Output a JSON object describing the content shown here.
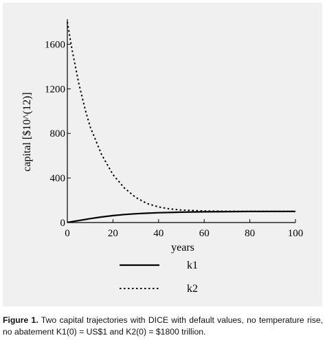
{
  "chart_data": {
    "type": "line",
    "title": "",
    "xlabel": "years",
    "ylabel": "capital [$10^(12)]",
    "xlim": [
      0,
      100
    ],
    "ylim": [
      0,
      1800
    ],
    "xticks": [
      0,
      20,
      40,
      60,
      80,
      100
    ],
    "yticks": [
      0,
      400,
      800,
      1200,
      1600
    ],
    "grid": false,
    "legend_placement": "bottom-center",
    "series": [
      {
        "name": "k1",
        "style": "solid",
        "color": "#000000",
        "x": [
          0,
          5,
          10,
          15,
          20,
          25,
          30,
          35,
          40,
          50,
          60,
          70,
          80,
          90,
          100
        ],
        "y": [
          1,
          18,
          35,
          50,
          62,
          72,
          79,
          84,
          88,
          93,
          96,
          98,
          99,
          100,
          100
        ]
      },
      {
        "name": "k2",
        "style": "dotted",
        "color": "#000000",
        "x": [
          0,
          2,
          5,
          8,
          10,
          15,
          20,
          25,
          30,
          35,
          40,
          45,
          50,
          60,
          70,
          80,
          90,
          100
        ],
        "y": [
          1800,
          1560,
          1250,
          1000,
          860,
          610,
          430,
          310,
          225,
          170,
          140,
          122,
          112,
          104,
          101,
          100,
          100,
          100
        ]
      }
    ]
  },
  "caption": {
    "label": "Figure 1.",
    "text": " Two capital trajectories with DICE with default values, no temperature rise, no abatement K1(0) = US$1 and K2(0) = $1800 trillion."
  }
}
